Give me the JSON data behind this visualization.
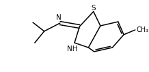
{
  "background_color": "#ffffff",
  "bond_color": "#000000",
  "text_color": "#000000",
  "figsize": [
    2.18,
    1.06
  ],
  "dpi": 100,
  "xlim": [
    0,
    218
  ],
  "ylim": [
    0,
    106
  ]
}
